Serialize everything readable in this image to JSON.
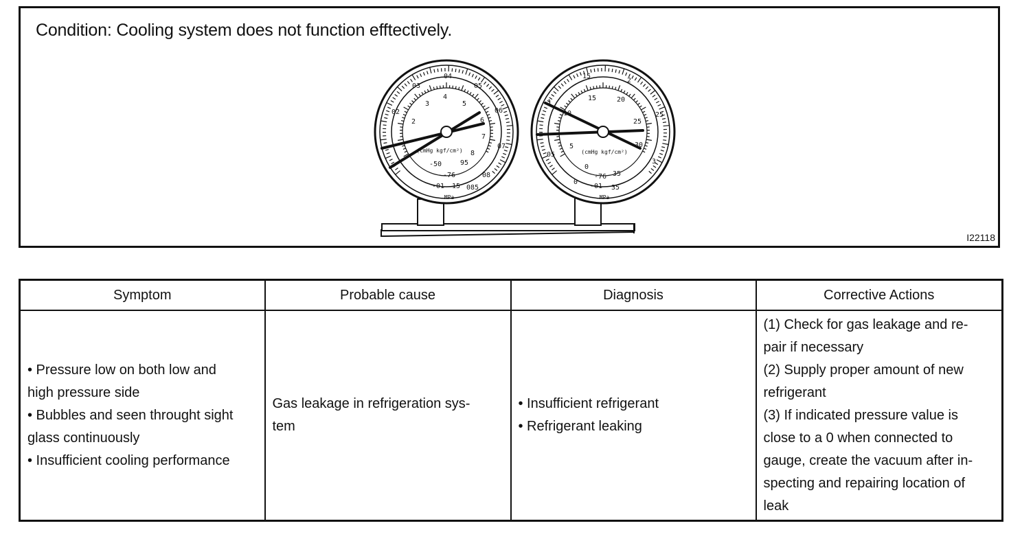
{
  "condition": {
    "title": "Condition: Cooling system does not function efftectively.",
    "figure_id": "I22118"
  },
  "gauges": {
    "low": {
      "outer_labels": [
        "04",
        "03",
        "05",
        "02",
        "06",
        "07",
        "08",
        "085"
      ],
      "inner_labels": [
        "3",
        "4",
        "5",
        "2",
        "6",
        "7",
        "8",
        "95",
        "-50",
        "-76",
        "15",
        "-01"
      ],
      "unit": "(cmHg kgf/cm²)",
      "mpa": "MPa"
    },
    "high": {
      "outer_labels": [
        "1",
        "15",
        "2",
        "25",
        "3",
        "05",
        "0",
        "35"
      ],
      "inner_labels": [
        "10",
        "15",
        "20",
        "25",
        "30",
        "5",
        "0",
        "-76",
        "35",
        "-01"
      ],
      "unit": "(cmHg kgf/cm²)",
      "mpa": "MPa"
    }
  },
  "table": {
    "headers": [
      "Symptom",
      "Probable cause",
      "Diagnosis",
      "Corrective Actions"
    ],
    "symptom": [
      "• Pressure low on both low and",
      "high pressure side",
      "• Bubbles and seen throught sight",
      "glass continuously",
      "• Insufficient cooling performance"
    ],
    "cause": [
      "Gas leakage in refrigeration sys-",
      "tem"
    ],
    "diagnosis": [
      "• Insufficient refrigerant",
      "• Refrigerant leaking"
    ],
    "actions": [
      "(1) Check for gas leakage and re-",
      "pair if necessary",
      "(2) Supply proper amount of new",
      "refrigerant",
      "(3) If indicated pressure value is",
      "close to a 0 when connected to",
      "gauge, create the vacuum after in-",
      "specting and repairing location of",
      "leak"
    ]
  }
}
